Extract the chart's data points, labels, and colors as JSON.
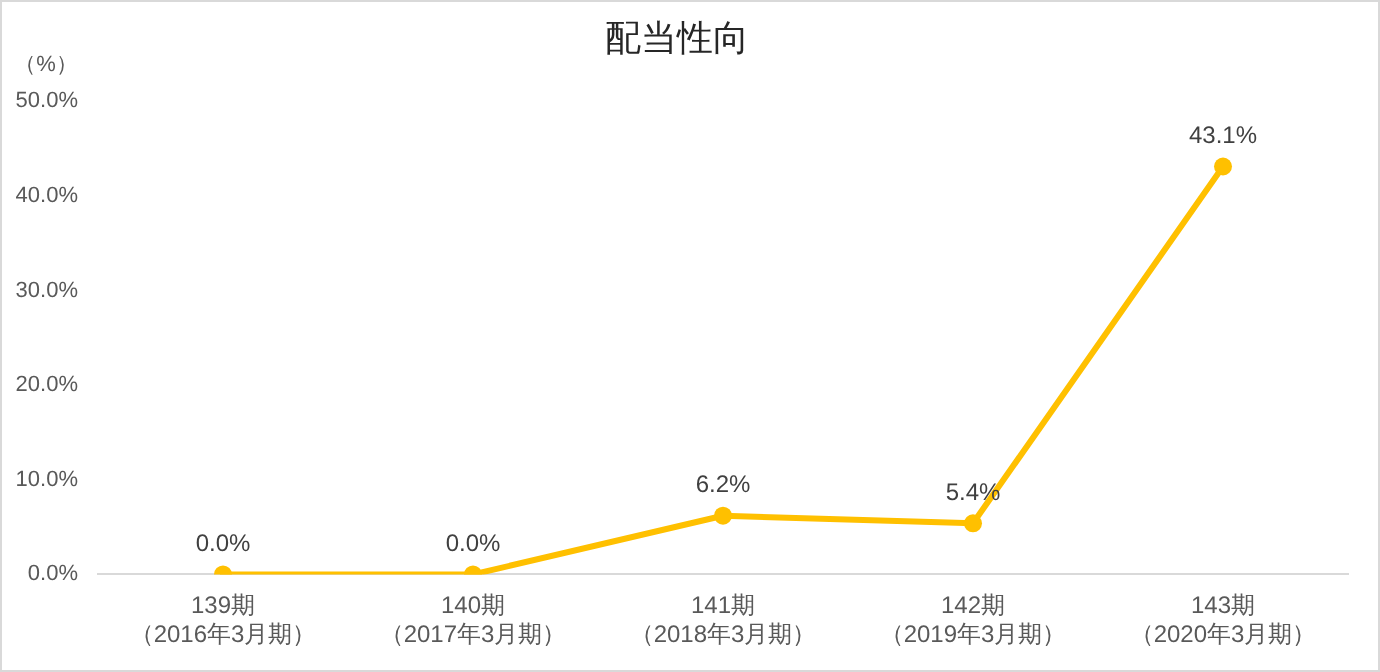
{
  "chart_data": {
    "type": "line",
    "title": "配当性向",
    "ylabel": "（%）",
    "categories": [
      "139期（2016年3月期）",
      "140期（2017年3月期）",
      "141期（2018年3月期）",
      "142期（2019年3月期）",
      "143期（2020年3月期）"
    ],
    "values": [
      0,
      0,
      6.2,
      5.4,
      43.1
    ],
    "color": "#ffc000",
    "value_labels": [
      "0.0%",
      "0.0%",
      "6.2%",
      "5.4%",
      "43.1%"
    ],
    "ylim": [
      0,
      50
    ],
    "yticks": [
      {
        "value": 0,
        "label": "0.0%"
      },
      {
        "value": 10,
        "label": "10.0%"
      },
      {
        "value": 20,
        "label": "20.0%"
      },
      {
        "value": 30,
        "label": "30.0%"
      },
      {
        "value": 40,
        "label": "40.0%"
      },
      {
        "value": 50,
        "label": "50.0%"
      }
    ],
    "marker": "circle",
    "line_style": "solid"
  }
}
